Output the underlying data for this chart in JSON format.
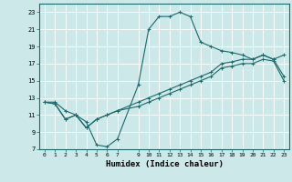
{
  "title": "",
  "xlabel": "Humidex (Indice chaleur)",
  "bg_color": "#cce8e8",
  "grid_color": "#ffffff",
  "line_color": "#1a6b6b",
  "xlim": [
    -0.5,
    23.5
  ],
  "ylim": [
    7,
    24
  ],
  "xticks": [
    0,
    1,
    2,
    3,
    4,
    5,
    6,
    7,
    9,
    10,
    11,
    12,
    13,
    14,
    15,
    16,
    17,
    18,
    19,
    20,
    21,
    22,
    23
  ],
  "yticks": [
    7,
    9,
    11,
    13,
    15,
    17,
    19,
    21,
    23
  ],
  "curve1_x": [
    0,
    1,
    2,
    3,
    4,
    5,
    6,
    7,
    9,
    10,
    11,
    12,
    13,
    14,
    15,
    16,
    17,
    18,
    19,
    20,
    21,
    22,
    23
  ],
  "curve1_y": [
    12.5,
    12.5,
    11.5,
    11.0,
    10.2,
    7.5,
    7.3,
    8.2,
    14.5,
    21.0,
    22.5,
    22.5,
    23.0,
    22.5,
    19.5,
    19.0,
    18.5,
    18.3,
    18.0,
    17.5,
    18.0,
    17.5,
    18.0
  ],
  "curve2_x": [
    0,
    1,
    2,
    3,
    4,
    5,
    6,
    7,
    9,
    10,
    11,
    12,
    13,
    14,
    15,
    16,
    17,
    18,
    19,
    20,
    21,
    22,
    23
  ],
  "curve2_y": [
    12.5,
    12.3,
    10.5,
    11.0,
    9.5,
    10.5,
    11.0,
    11.5,
    12.5,
    13.0,
    13.5,
    14.0,
    14.5,
    15.0,
    15.5,
    16.0,
    17.0,
    17.2,
    17.5,
    17.5,
    18.0,
    17.5,
    15.5
  ],
  "curve3_x": [
    0,
    1,
    2,
    3,
    4,
    5,
    6,
    7,
    9,
    10,
    11,
    12,
    13,
    14,
    15,
    16,
    17,
    18,
    19,
    20,
    21,
    22,
    23
  ],
  "curve3_y": [
    12.5,
    12.3,
    10.5,
    11.0,
    9.5,
    10.5,
    11.0,
    11.5,
    12.0,
    12.5,
    13.0,
    13.5,
    14.0,
    14.5,
    15.0,
    15.5,
    16.5,
    16.7,
    17.0,
    17.0,
    17.5,
    17.3,
    15.0
  ]
}
